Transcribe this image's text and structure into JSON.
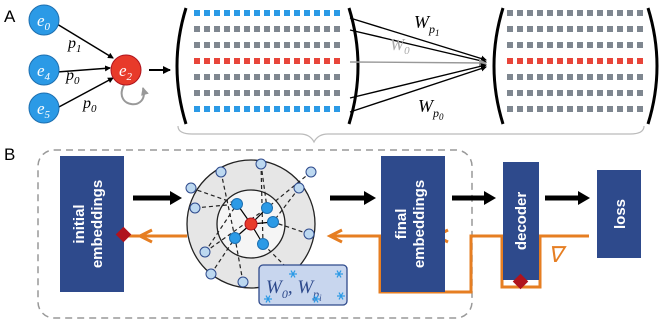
{
  "panel_a": {
    "label": "A",
    "nodes": {
      "e0": {
        "base": "e",
        "sub": "0"
      },
      "e4": {
        "base": "e",
        "sub": "4"
      },
      "e5": {
        "base": "e",
        "sub": "5"
      },
      "e2": {
        "base": "e",
        "sub": "2"
      }
    },
    "edge_labels": {
      "p1": {
        "base": "p",
        "sub": "1"
      },
      "p0_top": {
        "base": "p",
        "sub": "0"
      },
      "p0_bottom": {
        "base": "p",
        "sub": "0"
      }
    },
    "weights": {
      "wp1": {
        "base": "W",
        "sub": "p",
        "subsub": "1"
      },
      "w0": {
        "base": "W",
        "sub": "0"
      },
      "wp0": {
        "base": "W",
        "sub": "p",
        "subsub": "0"
      }
    }
  },
  "panel_b": {
    "label": "B",
    "boxes": {
      "initial": {
        "line1": "initial",
        "line2": "embeddings"
      },
      "final": {
        "line1": "final",
        "line2": "embeddings"
      },
      "decoder": {
        "line1": "decoder"
      },
      "loss": {
        "line1": "loss"
      }
    },
    "weight_box": {
      "w0": {
        "base": "W",
        "sub": "0"
      },
      "wpi": {
        "base": "W",
        "sub": "p",
        "subsub": "i"
      }
    },
    "gradient_symbol": "∇"
  },
  "colors": {
    "blue_node": "#2b9ae6",
    "red_node": "#e83a2a",
    "dark_blue_box": "#2e4a8c",
    "orange": "#e67e22",
    "matrix_blue": "#2b9ae6",
    "matrix_gray": "#7f8790",
    "matrix_red": "#e8453a",
    "light_node": "#bcd8f0",
    "dark_red": "#b0131d"
  }
}
